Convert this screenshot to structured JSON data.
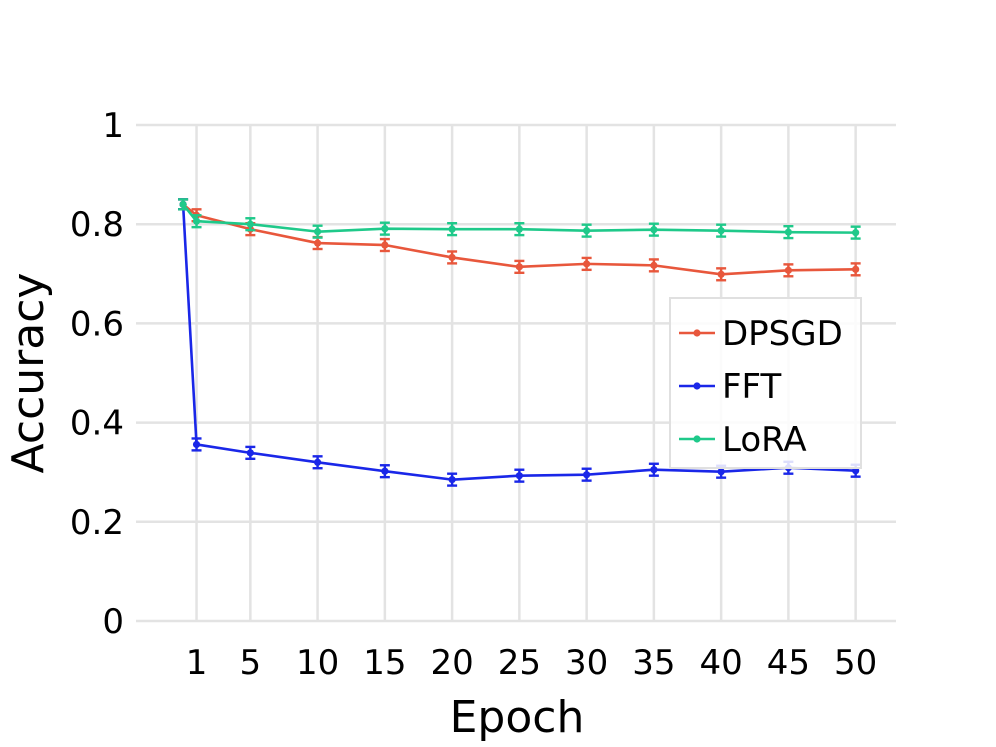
{
  "chart_data": {
    "type": "line",
    "title": "",
    "xlabel": "Epoch",
    "ylabel": "Accuracy",
    "x_ticks": [
      1,
      5,
      10,
      15,
      20,
      25,
      30,
      35,
      40,
      45,
      50
    ],
    "x_tick_labels": [
      "1",
      "5",
      "10",
      "15",
      "20",
      "25",
      "30",
      "35",
      "40",
      "45",
      "50"
    ],
    "y_ticks": [
      0,
      0.2,
      0.4,
      0.6,
      0.8,
      1
    ],
    "y_tick_labels": [
      "0",
      "0.2",
      "0.4",
      "0.6",
      "0.8",
      "1"
    ],
    "xlim": [
      -3.5,
      53
    ],
    "ylim": [
      0,
      1
    ],
    "grid": true,
    "legend_position": "center-right",
    "series": [
      {
        "name": "DPSGD",
        "color": "#e8573c",
        "x": [
          0,
          1,
          5,
          10,
          15,
          20,
          25,
          30,
          35,
          40,
          45,
          50
        ],
        "y": [
          0.84,
          0.818,
          0.79,
          0.762,
          0.758,
          0.733,
          0.714,
          0.72,
          0.717,
          0.699,
          0.707,
          0.709
        ],
        "err": [
          0.01,
          0.012,
          0.012,
          0.012,
          0.012,
          0.012,
          0.012,
          0.012,
          0.012,
          0.012,
          0.012,
          0.012
        ]
      },
      {
        "name": "FFT",
        "color": "#1a27e8",
        "x": [
          0,
          1,
          5,
          10,
          15,
          20,
          25,
          30,
          35,
          40,
          45,
          50
        ],
        "y": [
          0.84,
          0.356,
          0.339,
          0.32,
          0.302,
          0.285,
          0.293,
          0.295,
          0.305,
          0.301,
          0.309,
          0.303
        ],
        "err": [
          0.01,
          0.012,
          0.012,
          0.012,
          0.012,
          0.012,
          0.012,
          0.012,
          0.012,
          0.012,
          0.012,
          0.012
        ]
      },
      {
        "name": "LoRA",
        "color": "#1fc98a",
        "x": [
          0,
          1,
          5,
          10,
          15,
          20,
          25,
          30,
          35,
          40,
          45,
          50
        ],
        "y": [
          0.84,
          0.806,
          0.8,
          0.785,
          0.791,
          0.79,
          0.79,
          0.787,
          0.789,
          0.787,
          0.784,
          0.783
        ],
        "err": [
          0.01,
          0.012,
          0.012,
          0.012,
          0.012,
          0.012,
          0.012,
          0.012,
          0.012,
          0.012,
          0.012,
          0.012
        ]
      }
    ]
  }
}
